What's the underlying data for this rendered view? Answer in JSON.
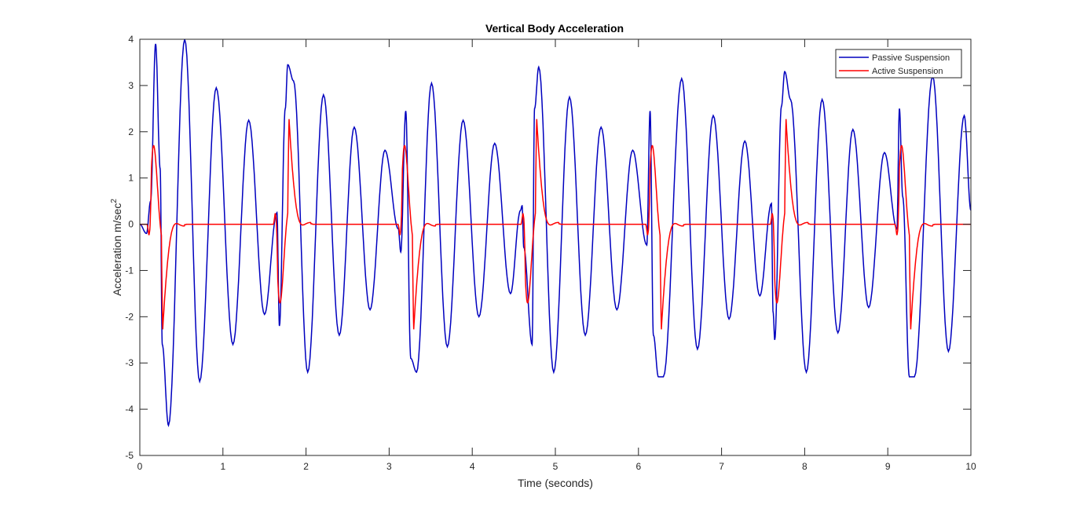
{
  "chart_data": {
    "type": "line",
    "title": "Vertical Body Acceleration",
    "xlabel": "Time (seconds)",
    "ylabel_base": "Acceleration m/sec",
    "ylabel_sup": "2",
    "xlim": [
      0,
      10
    ],
    "ylim": [
      -5,
      4
    ],
    "xticks": [
      "0",
      "1",
      "2",
      "3",
      "4",
      "5",
      "6",
      "7",
      "8",
      "9",
      "10"
    ],
    "yticks": [
      "-5",
      "-4",
      "-3",
      "-2",
      "-1",
      "0",
      "1",
      "2",
      "3",
      "4"
    ],
    "grid": false,
    "legend_location": "top-right",
    "series": [
      {
        "name": "Passive Suspension",
        "color": "#0000bf",
        "x": [
          0,
          0.08,
          0.13,
          0.19,
          0.245,
          0.27,
          0.345,
          0.54,
          0.72,
          0.92,
          1.12,
          1.31,
          1.5,
          1.65,
          1.68,
          1.75,
          1.78,
          1.85,
          2.02,
          2.21,
          2.4,
          2.58,
          2.77,
          2.95,
          3.11,
          3.14,
          3.2,
          3.26,
          3.33,
          3.51,
          3.7,
          3.89,
          4.08,
          4.27,
          4.46,
          4.58,
          4.6,
          4.62,
          4.72,
          4.75,
          4.8,
          4.98,
          5.17,
          5.36,
          5.55,
          5.74,
          5.93,
          6.1,
          6.14,
          6.18,
          6.24,
          6.3,
          6.52,
          6.71,
          6.9,
          7.09,
          7.28,
          7.46,
          7.6,
          7.62,
          7.64,
          7.72,
          7.76,
          7.83,
          8.02,
          8.21,
          8.4,
          8.58,
          8.77,
          8.96,
          9.11,
          9.14,
          9.18,
          9.26,
          9.32,
          9.54,
          9.73,
          9.92,
          10
        ],
        "y": [
          0,
          -0.2,
          0.5,
          3.9,
          1.2,
          -2.6,
          -4.35,
          4.0,
          -3.4,
          2.95,
          -2.6,
          2.25,
          -1.95,
          0.25,
          -2.2,
          2.5,
          3.45,
          3.1,
          -3.2,
          2.8,
          -2.4,
          2.1,
          -1.85,
          1.6,
          -0.1,
          -0.6,
          2.45,
          -2.9,
          -3.2,
          3.05,
          -2.65,
          2.25,
          -2.0,
          1.75,
          -1.5,
          0.3,
          0.4,
          -0.5,
          -2.6,
          2.5,
          3.4,
          -3.2,
          2.75,
          -2.4,
          2.1,
          -1.85,
          1.6,
          -0.45,
          2.45,
          -2.4,
          -3.3,
          -3.3,
          3.15,
          -2.7,
          2.35,
          -2.05,
          1.8,
          -1.55,
          0.45,
          -1.9,
          -2.5,
          2.55,
          3.3,
          2.7,
          -3.2,
          2.7,
          -2.35,
          2.05,
          -1.8,
          1.55,
          -0.1,
          2.5,
          0.6,
          -3.3,
          -3.3,
          3.2,
          -2.75,
          2.35,
          0.3
        ]
      },
      {
        "name": "Active Suspension",
        "color": "#ff0000",
        "events": [
          0.12,
          1.64,
          3.14,
          4.62,
          6.12,
          7.62,
          9.12
        ]
      }
    ]
  }
}
